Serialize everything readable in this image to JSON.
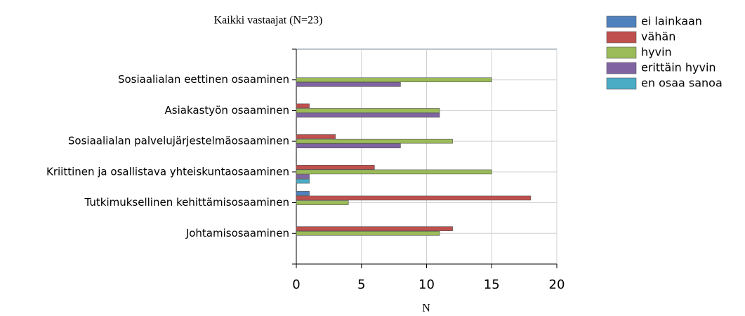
{
  "chart_data": {
    "type": "hbar",
    "title": "Kaikki vastaajat (N=23)",
    "x_label": "N",
    "categories": [
      "Sosiaalialan eettinen osaaminen",
      "Asiakastyön osaaminen",
      "Sosiaalialan palvelujärjestelmäosaaminen",
      "Kriittinen ja osallistava yhteiskuntaosaaminen",
      "Tutkimuksellinen kehittämisosaaminen",
      "Johtamisosaaminen"
    ],
    "series": [
      {
        "name": "ei lainkaan",
        "color": "#4f81bd",
        "values": [
          0,
          0,
          0,
          0,
          1,
          0
        ]
      },
      {
        "name": "vähän",
        "color": "#c0504d",
        "values": [
          0,
          1,
          3,
          6,
          18,
          12
        ]
      },
      {
        "name": "hyvin",
        "color": "#9bbb59",
        "values": [
          15,
          11,
          12,
          15,
          4,
          11
        ]
      },
      {
        "name": "erittäin hyvin",
        "color": "#8064a2",
        "values": [
          8,
          11,
          8,
          1,
          0,
          0
        ]
      },
      {
        "name": "en osaa sanoa",
        "color": "#4bacc6",
        "values": [
          0,
          0,
          0,
          1,
          0,
          0
        ]
      }
    ],
    "xlim": [
      0,
      20
    ],
    "xticks": [
      0,
      5,
      10,
      15,
      20
    ],
    "grid": true,
    "legend": "right"
  }
}
